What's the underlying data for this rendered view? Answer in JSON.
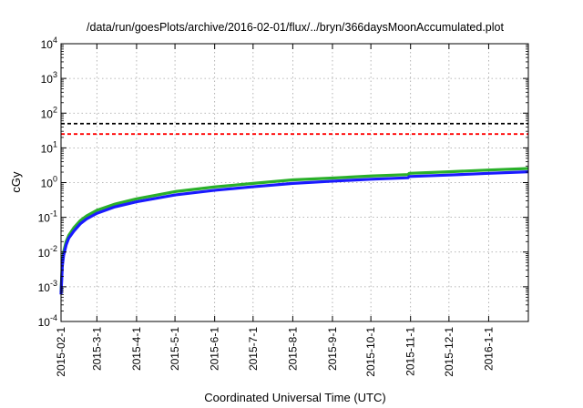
{
  "chart_data": {
    "type": "line",
    "title": "/data/run/goesPlots/archive/2016-02-01/flux/../bryn/366daysMoonAccumulated.plot",
    "xlabel": "Coordinated Universal Time (UTC)",
    "ylabel": "cGy",
    "yscale": "log",
    "ylim": [
      0.0001,
      10000
    ],
    "xlim": [
      "2015-02-01",
      "2016-02-01"
    ],
    "grid": true,
    "x_ticks": [
      "2015-02-1",
      "2015-3-1",
      "2015-4-1",
      "2015-5-1",
      "2015-6-1",
      "2015-7-1",
      "2015-8-1",
      "2015-9-1",
      "2015-10-1",
      "2015-11-1",
      "2015-12-1",
      "2016-1-1"
    ],
    "y_ticks": [
      {
        "base": "10",
        "exp": "-4"
      },
      {
        "base": "10",
        "exp": "-3"
      },
      {
        "base": "10",
        "exp": "-2"
      },
      {
        "base": "10",
        "exp": "-1"
      },
      {
        "base": "10",
        "exp": "0"
      },
      {
        "base": "10",
        "exp": "1"
      },
      {
        "base": "10",
        "exp": "2"
      },
      {
        "base": "10",
        "exp": "3"
      },
      {
        "base": "10",
        "exp": "4"
      }
    ],
    "series": [
      {
        "color": "#2ab02a",
        "style": "solid",
        "x": [
          "2015-02-01",
          "2015-02-02",
          "2015-02-03",
          "2015-02-05",
          "2015-02-07",
          "2015-02-11",
          "2015-02-16",
          "2015-02-21",
          "2015-03-01",
          "2015-03-15",
          "2015-04-01",
          "2015-05-01",
          "2015-06-01",
          "2015-07-01",
          "2015-08-01",
          "2015-09-01",
          "2015-10-01",
          "2015-10-30",
          "2015-10-31",
          "2015-12-01",
          "2016-01-01",
          "2016-02-01"
        ],
        "y": [
          0.0007,
          0.005,
          0.01,
          0.02,
          0.03,
          0.05,
          0.08,
          0.11,
          0.16,
          0.24,
          0.34,
          0.55,
          0.75,
          0.95,
          1.2,
          1.35,
          1.55,
          1.7,
          1.85,
          2.05,
          2.3,
          2.55
        ]
      },
      {
        "color": "#1a1aff",
        "style": "solid",
        "x": [
          "2015-02-01",
          "2015-02-02",
          "2015-02-03",
          "2015-02-05",
          "2015-02-07",
          "2015-02-11",
          "2015-02-16",
          "2015-02-21",
          "2015-03-01",
          "2015-03-15",
          "2015-04-01",
          "2015-05-01",
          "2015-06-01",
          "2015-07-01",
          "2015-08-01",
          "2015-09-01",
          "2015-10-01",
          "2015-10-30",
          "2015-10-31",
          "2015-12-01",
          "2016-01-01",
          "2016-02-01"
        ],
        "y": [
          0.0006,
          0.004,
          0.008,
          0.016,
          0.025,
          0.04,
          0.065,
          0.09,
          0.13,
          0.2,
          0.28,
          0.44,
          0.6,
          0.76,
          0.95,
          1.1,
          1.25,
          1.38,
          1.5,
          1.65,
          1.85,
          2.05
        ]
      },
      {
        "color": "#000000",
        "style": "dashed",
        "x": [
          "2015-02-01",
          "2016-02-01"
        ],
        "y": [
          50,
          50
        ]
      },
      {
        "color": "#ff0000",
        "style": "dashed",
        "x": [
          "2015-02-01",
          "2016-02-01"
        ],
        "y": [
          25,
          25
        ]
      }
    ]
  }
}
